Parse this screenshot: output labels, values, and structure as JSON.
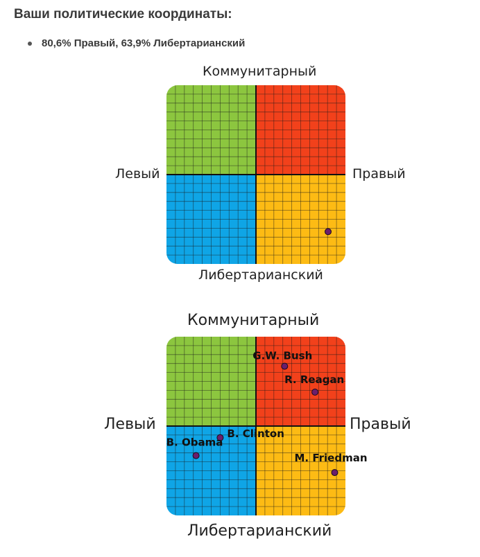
{
  "page": {
    "heading": "Ваши политические координаты:",
    "result_line": "80,6% Правый, 63,9% Либертарианский"
  },
  "colors": {
    "green": "#8cc63f",
    "red": "#f2411b",
    "blue": "#0fa5e6",
    "yellow": "#fdbb14",
    "grid": "#1a1a1a",
    "point": "#6b1e6b"
  },
  "chart_data": [
    {
      "type": "scatter",
      "title": "",
      "labels": {
        "top": "Коммунитарный",
        "bottom": "Либертарианский",
        "left": "Левый",
        "right": "Правый"
      },
      "x_range": [
        -100,
        100
      ],
      "y_range": [
        -100,
        100
      ],
      "grid": true,
      "points": [
        {
          "name": "",
          "x": 80.6,
          "y": -63.9
        }
      ]
    },
    {
      "type": "scatter",
      "title": "",
      "labels": {
        "top": "Коммунитарный",
        "bottom": "Либертарианский",
        "left": "Левый",
        "right": "Правый"
      },
      "x_range": [
        -100,
        100
      ],
      "y_range": [
        -100,
        100
      ],
      "grid": true,
      "points": [
        {
          "name": "G.W. Bush",
          "x": 32,
          "y": 67
        },
        {
          "name": "R. Reagan",
          "x": 66,
          "y": 38
        },
        {
          "name": "B. Clinton",
          "x": -40,
          "y": -13
        },
        {
          "name": "B. Obama",
          "x": -67,
          "y": -33
        },
        {
          "name": "M. Friedman",
          "x": 88,
          "y": -52
        }
      ]
    }
  ]
}
